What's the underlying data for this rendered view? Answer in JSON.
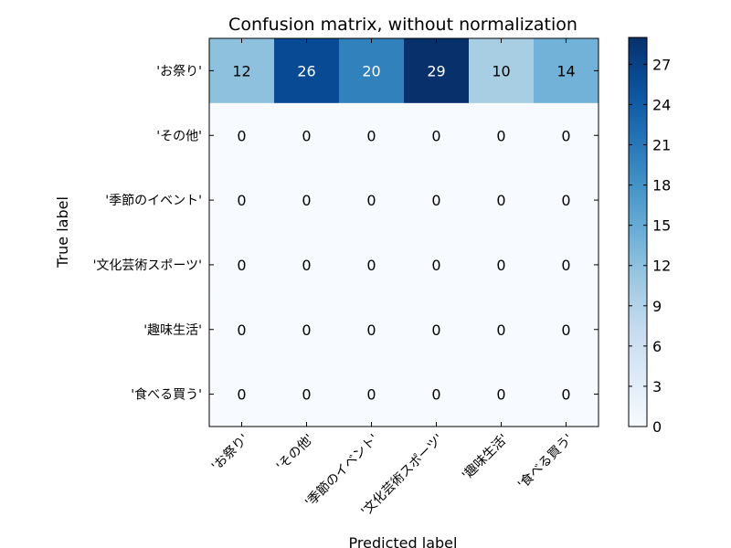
{
  "chart_data": {
    "type": "heatmap",
    "title": "Confusion matrix, without normalization",
    "xlabel": "Predicted label",
    "ylabel": "True label",
    "row_labels": [
      "'お祭り'",
      "'その他'",
      "'季節のイベント'",
      "'文化芸術スポーツ'",
      "'趣味生活'",
      "'食べる買う'"
    ],
    "col_labels": [
      "'お祭り'",
      "'その他'",
      "'季節のイベント'",
      "'文化芸術スポーツ'",
      "'趣味生活'",
      "'食べる買う'"
    ],
    "values": [
      [
        12,
        26,
        20,
        29,
        10,
        14
      ],
      [
        0,
        0,
        0,
        0,
        0,
        0
      ],
      [
        0,
        0,
        0,
        0,
        0,
        0
      ],
      [
        0,
        0,
        0,
        0,
        0,
        0
      ],
      [
        0,
        0,
        0,
        0,
        0,
        0
      ],
      [
        0,
        0,
        0,
        0,
        0,
        0
      ]
    ],
    "colormap": "Blues",
    "colorbar": {
      "range": [
        0,
        29
      ],
      "ticks": [
        0,
        3,
        6,
        9,
        12,
        15,
        18,
        21,
        24,
        27
      ]
    }
  }
}
